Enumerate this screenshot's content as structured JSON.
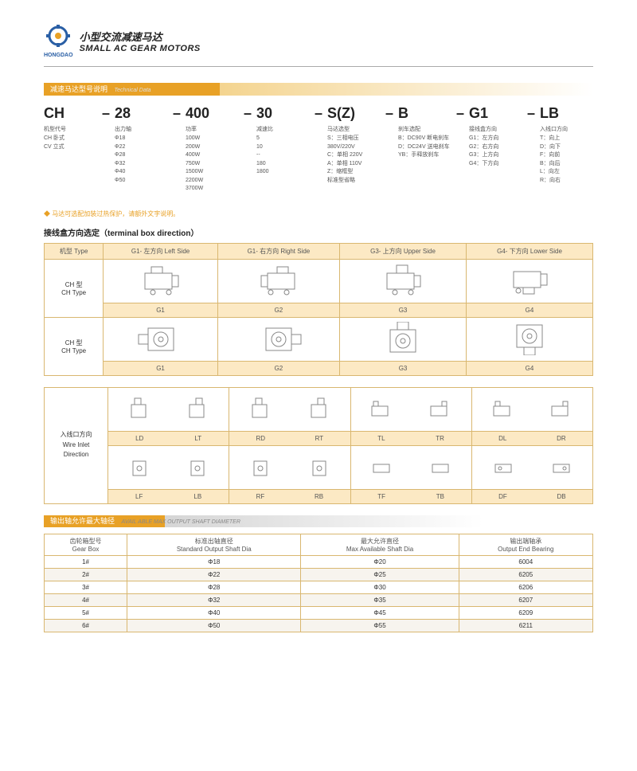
{
  "header": {
    "brand": "HONGDAO",
    "title_cn": "小型交流减速马达",
    "title_en": "SMALL AC GEAR MOTORS"
  },
  "sec1": {
    "header_cn": "减速马达型号说明",
    "header_en": "Technical Data"
  },
  "codes": [
    {
      "big": "CH",
      "lbl": "机型代号",
      "opts": [
        "CH 卧式",
        "CV 立式"
      ]
    },
    {
      "big": "28",
      "lbl": "出力轴",
      "opts": [
        "Φ18",
        "Φ22",
        "Φ28",
        "Φ32",
        "Φ40",
        "Φ50"
      ]
    },
    {
      "big": "400",
      "lbl": "功率",
      "opts": [
        "100W",
        "200W",
        "400W",
        "750W",
        "1500W",
        "2200W",
        "3700W"
      ]
    },
    {
      "big": "30",
      "lbl": "减速比",
      "opts": [
        "5",
        "10",
        "--",
        "180",
        "1800"
      ]
    },
    {
      "big": "S(Z)",
      "lbl": "马达选型",
      "opts": [
        "S：三相电压",
        "380V/220V",
        "C：单相 220V",
        "A：单相 110V",
        "Z：缩框型",
        "标准型省略"
      ]
    },
    {
      "big": "B",
      "lbl": "刹车选配",
      "opts": [
        "B：DC90V 断电刹车",
        "D：DC24V 送电刹车",
        "YB：手释放刹车"
      ]
    },
    {
      "big": "G1",
      "lbl": "接线盒方向",
      "opts": [
        "G1：左方向",
        "G2：右方向",
        "G3：上方向",
        "G4：下方向"
      ]
    },
    {
      "big": "LB",
      "lbl": "入线口方向",
      "opts": [
        "T：向上",
        "D：向下",
        "F：向前",
        "B：向后",
        "L：向左",
        "R：向右"
      ]
    }
  ],
  "note": "马达可选配加装过热保护，请额外文字说明。",
  "tbd": {
    "title": "接线盒方向选定（terminal box direction）",
    "cols": [
      "机型 Type",
      "G1- 左方向 Left Side",
      "G1- 右方向 Right Side",
      "G3- 上方向 Upper Side",
      "G4- 下方向 Lower Side"
    ],
    "row1": {
      "lbl_cn": "CH 型",
      "lbl_en": "CH Type",
      "labels": [
        "G1",
        "G2",
        "G3",
        "G4"
      ]
    },
    "row2": {
      "lbl_cn": "CH 型",
      "lbl_en": "CH Type",
      "labels": [
        "G1",
        "G2",
        "G3",
        "G4"
      ]
    }
  },
  "wire": {
    "lead_cn": "入线口方向",
    "lead_en1": "Wire Inlet",
    "lead_en2": "Direction",
    "r1": [
      "LD",
      "LT",
      "RD",
      "RT",
      "TL",
      "TR",
      "DL",
      "DR"
    ],
    "r2": [
      "LF",
      "LB",
      "RF",
      "RB",
      "TF",
      "TB",
      "DF",
      "DB"
    ]
  },
  "sec3": {
    "header_cn": "输出轴允许最大轴径",
    "header_en": "AVAIL ABLE MAX OUTPUT SHAFT DIAMETER"
  },
  "shaft": {
    "cols": [
      {
        "cn": "齿轮箱型号",
        "en": "Gear Box"
      },
      {
        "cn": "标准出轴直径",
        "en": "Standard Output Shaft Dia"
      },
      {
        "cn": "最大允许直径",
        "en": "Max Available Shaft Dia"
      },
      {
        "cn": "输出端轴承",
        "en": "Output End Bearing"
      }
    ],
    "rows": [
      [
        "1#",
        "Φ18",
        "Φ20",
        "6004"
      ],
      [
        "2#",
        "Φ22",
        "Φ25",
        "6205"
      ],
      [
        "3#",
        "Φ28",
        "Φ30",
        "6206"
      ],
      [
        "4#",
        "Φ32",
        "Φ35",
        "6207"
      ],
      [
        "5#",
        "Φ40",
        "Φ45",
        "6209"
      ],
      [
        "6#",
        "Φ50",
        "Φ55",
        "6211"
      ]
    ]
  }
}
